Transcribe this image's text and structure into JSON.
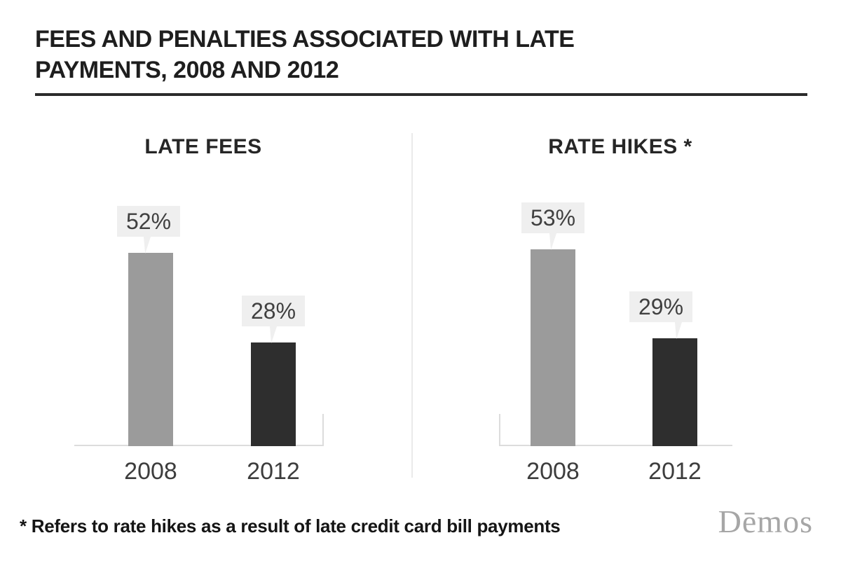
{
  "page": {
    "title_line1": "FEES AND PENALTIES ASSOCIATED WITH LATE",
    "title_line2": "PAYMENTS, 2008 AND 2012",
    "footnote": "* Refers to rate hikes as a result of late credit card bill payments",
    "brand": "Dēmos"
  },
  "colors": {
    "bar_2008_gray": "#9b9b9b",
    "bar_2012_dark": "#2e2e2e",
    "bubble_background": "#efefef",
    "axis_gray": "#dcdcdc",
    "brand_gray": "#a6a6a6"
  },
  "chart_data": [
    {
      "type": "bar",
      "title": "LATE FEES",
      "categories": [
        "2008",
        "2012"
      ],
      "values": [
        52,
        28
      ],
      "value_labels": [
        "52%",
        "28%"
      ],
      "unit": "percent",
      "ylim": [
        0,
        60
      ],
      "bar_colors": [
        "#9b9b9b",
        "#2e2e2e"
      ],
      "grid": false,
      "legend": false,
      "annotation_style": "callout-bubble-above-bar"
    },
    {
      "type": "bar",
      "title": "RATE HIKES *",
      "categories": [
        "2008",
        "2012"
      ],
      "values": [
        53,
        29
      ],
      "value_labels": [
        "53%",
        "29%"
      ],
      "unit": "percent",
      "ylim": [
        0,
        60
      ],
      "bar_colors": [
        "#9b9b9b",
        "#2e2e2e"
      ],
      "grid": false,
      "legend": false,
      "annotation_style": "callout-bubble-above-bar"
    }
  ]
}
